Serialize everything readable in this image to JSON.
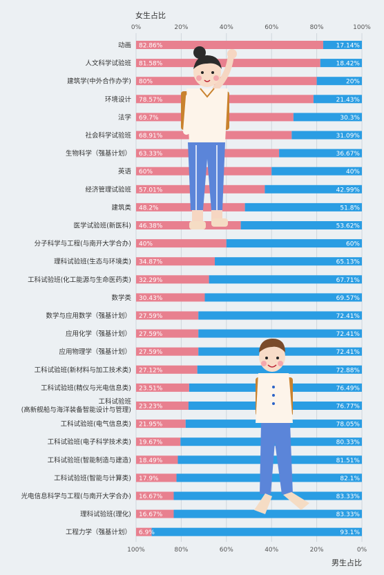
{
  "chart_data": {
    "type": "bar",
    "orientation": "horizontal",
    "stacked": true,
    "top_axis_title": "女生占比",
    "bottom_axis_title": "男生占比",
    "top_ticks": [
      "0%",
      "20%",
      "40%",
      "60%",
      "80%",
      "100%"
    ],
    "bottom_ticks": [
      "100%",
      "80%",
      "60%",
      "40%",
      "20%",
      "0%"
    ],
    "xlim": [
      0,
      100
    ],
    "grid": true,
    "categories": [
      [
        "动画"
      ],
      [
        "人文科学试验班"
      ],
      [
        "建筑学(中外合作办学)"
      ],
      [
        "环境设计"
      ],
      [
        "法学"
      ],
      [
        "社会科学试验班"
      ],
      [
        "生物科学（强基计划）"
      ],
      [
        "英语"
      ],
      [
        "经济管理试验班"
      ],
      [
        "建筑类"
      ],
      [
        "医学试验班(新医科)"
      ],
      [
        "分子科学与工程(与南开大学合办)"
      ],
      [
        "理科试验班(生态与环境类)"
      ],
      [
        "工科试验班(化工能源与生命医药类)"
      ],
      [
        "数学类"
      ],
      [
        "数学与应用数学（强基计划）"
      ],
      [
        "应用化学（强基计划）"
      ],
      [
        "应用物理学（强基计划）"
      ],
      [
        "工科试验班(新材料与加工技术类)"
      ],
      [
        "工科试验班(精仪与光电信息类)"
      ],
      [
        "工科试验班",
        "(高新舰船与海洋装备智能设计与管理)"
      ],
      [
        "工科试验班(电气信息类)"
      ],
      [
        "工科试验班(电子科学技术类)"
      ],
      [
        "工科试验班(智能制造与建造)"
      ],
      [
        "工科试验班(智能与计算类)"
      ],
      [
        "光电信息科学与工程(与南开大学合办)"
      ],
      [
        "理科试验班(理化)"
      ],
      [
        "工程力学（强基计划）"
      ]
    ],
    "series": [
      {
        "name": "女生占比",
        "color": "#e8808f",
        "values": [
          82.86,
          81.58,
          80,
          78.57,
          69.7,
          68.91,
          63.33,
          60,
          57.01,
          48.2,
          46.38,
          40,
          34.87,
          32.29,
          30.43,
          27.59,
          27.59,
          27.59,
          27.12,
          23.51,
          23.23,
          21.95,
          19.67,
          18.49,
          17.9,
          16.67,
          16.67,
          6.9
        ],
        "labels": [
          "82.86%",
          "81.58%",
          "80%",
          "78.57%",
          "69.7%",
          "68.91%",
          "63.33%",
          "60%",
          "57.01%",
          "48.2%",
          "46.38%",
          "40%",
          "34.87%",
          "32.29%",
          "30.43%",
          "27.59%",
          "27.59%",
          "27.59%",
          "27.12%",
          "23.51%",
          "23.23%",
          "21.95%",
          "19.67%",
          "18.49%",
          "17.9%",
          "16.67%",
          "16.67%",
          "6.9%"
        ]
      },
      {
        "name": "男生占比",
        "color": "#2a9de3",
        "values": [
          17.14,
          18.42,
          20,
          21.43,
          30.3,
          31.09,
          36.67,
          40,
          42.99,
          51.8,
          53.62,
          60,
          65.13,
          67.71,
          69.57,
          72.41,
          72.41,
          72.41,
          72.88,
          76.49,
          76.77,
          78.05,
          80.33,
          81.51,
          82.1,
          83.33,
          83.33,
          93.1
        ],
        "labels": [
          "17.14%",
          "18.42%",
          "20%",
          "21.43%",
          "30.3%",
          "31.09%",
          "36.67%",
          "40%",
          "42.99%",
          "51.8%",
          "53.62%",
          "60%",
          "65.13%",
          "67.71%",
          "69.57%",
          "72.41%",
          "72.41%",
          "72.41%",
          "72.88%",
          "76.49%",
          "76.77%",
          "78.05%",
          "80.33%",
          "81.51%",
          "82.1%",
          "83.33%",
          "83.33%",
          "93.1%"
        ]
      }
    ]
  },
  "illustrations": {
    "girl_icon": "girl-student-illustration",
    "boy_icon": "boy-student-illustration"
  }
}
